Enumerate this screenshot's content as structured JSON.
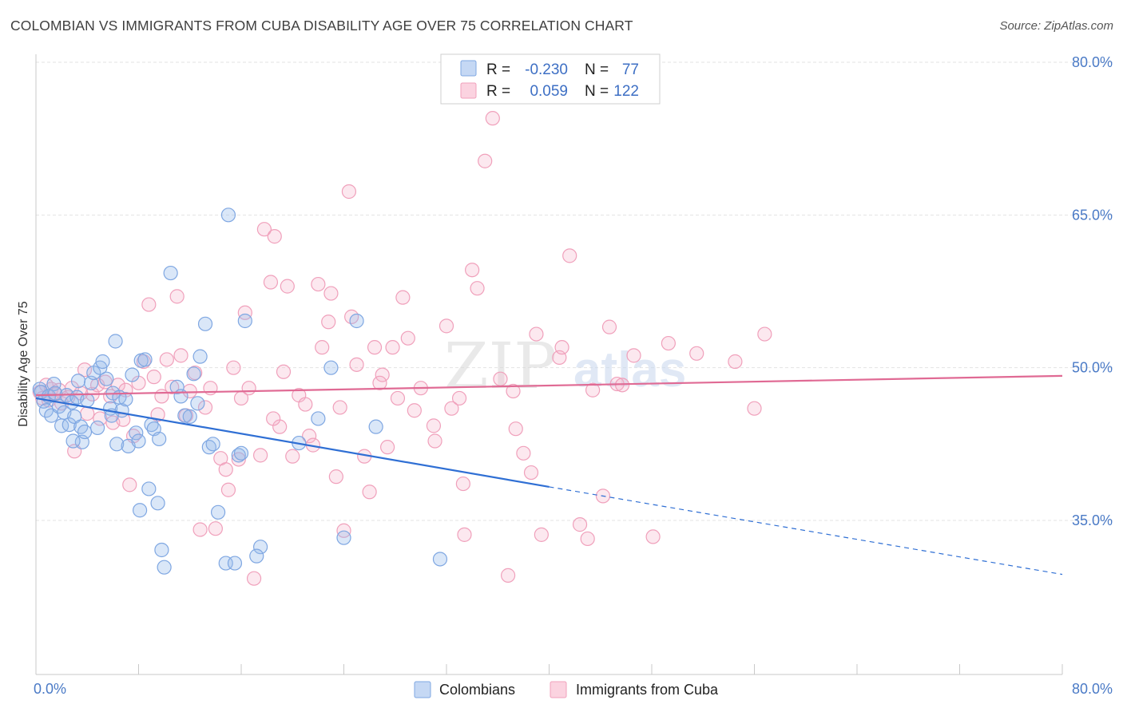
{
  "header": {
    "title": "COLOMBIAN VS IMMIGRANTS FROM CUBA DISABILITY AGE OVER 75 CORRELATION CHART",
    "source": "Source: ZipAtlas.com"
  },
  "watermark": {
    "part1": "ZIP",
    "part2": "atlas"
  },
  "legend_top": {
    "rows": [
      {
        "r_label": "R =",
        "r_value": "-0.230",
        "n_label": "N =",
        "n_value": "77",
        "color": "#7fa7e2"
      },
      {
        "r_label": "R =",
        "r_value": "0.059",
        "n_label": "N =",
        "n_value": "122",
        "color": "#f0a0bb"
      }
    ]
  },
  "legend_bottom": {
    "items": [
      {
        "label": "Colombians",
        "color": "#7fa7e2"
      },
      {
        "label": "Immigrants from Cuba",
        "color": "#f0a0bb"
      }
    ]
  },
  "chart_data": {
    "type": "scatter",
    "title": "COLOMBIAN VS IMMIGRANTS FROM CUBA DISABILITY AGE OVER 75 CORRELATION CHART",
    "xlabel": "",
    "ylabel": "Disability Age Over 75",
    "xlim": [
      0,
      80
    ],
    "ylim": [
      20,
      82
    ],
    "x_tick_labels": [
      "0.0%",
      "80.0%"
    ],
    "y_ticks": [
      35,
      50,
      65,
      80
    ],
    "y_tick_labels": [
      "35.0%",
      "50.0%",
      "65.0%",
      "80.0%"
    ],
    "grid": true,
    "series": [
      {
        "name": "Colombians",
        "color": "#7fa7e2",
        "line_color": "#2f6fd4",
        "r": -0.23,
        "n": 77,
        "trend": {
          "x0": 0,
          "y0": 47.0,
          "x1": 40,
          "y1": 38.3,
          "dashed_to_x": 80,
          "dashed_to_y": 29.7
        },
        "points": [
          [
            0.3,
            47.9
          ],
          [
            0.4,
            47.6
          ],
          [
            0.6,
            46.7
          ],
          [
            0.8,
            45.8
          ],
          [
            1,
            47.2
          ],
          [
            1.2,
            45.3
          ],
          [
            1.4,
            48.4
          ],
          [
            1.5,
            47.5
          ],
          [
            1.8,
            46.2
          ],
          [
            2,
            44.3
          ],
          [
            2.2,
            45.6
          ],
          [
            2.4,
            47.3
          ],
          [
            2.6,
            44.4
          ],
          [
            2.8,
            46.6
          ],
          [
            3,
            45.2
          ],
          [
            3.2,
            47.1
          ],
          [
            3.3,
            48.7
          ],
          [
            3.5,
            44.2
          ],
          [
            3.6,
            42.7
          ],
          [
            3.8,
            43.7
          ],
          [
            4,
            46.8
          ],
          [
            4.3,
            48.5
          ],
          [
            4.5,
            49.5
          ],
          [
            4.8,
            44.1
          ],
          [
            5,
            50.0
          ],
          [
            5.2,
            50.6
          ],
          [
            5.5,
            48.9
          ],
          [
            5.8,
            46.0
          ],
          [
            6,
            47.5
          ],
          [
            6.2,
            52.6
          ],
          [
            6.3,
            42.5
          ],
          [
            6.5,
            47.1
          ],
          [
            6.7,
            45.8
          ],
          [
            7,
            46.9
          ],
          [
            7.2,
            42.3
          ],
          [
            7.5,
            49.3
          ],
          [
            7.8,
            43.6
          ],
          [
            8,
            42.8
          ],
          [
            8.2,
            50.7
          ],
          [
            8.5,
            50.8
          ],
          [
            8.8,
            38.1
          ],
          [
            9,
            44.4
          ],
          [
            9.2,
            44.0
          ],
          [
            9.5,
            36.7
          ],
          [
            9.8,
            32.1
          ],
          [
            10,
            30.4
          ],
          [
            10.5,
            59.3
          ],
          [
            11,
            48.1
          ],
          [
            11.3,
            47.2
          ],
          [
            11.6,
            45.3
          ],
          [
            12,
            45.2
          ],
          [
            12.3,
            49.4
          ],
          [
            12.6,
            46.5
          ],
          [
            12.8,
            51.1
          ],
          [
            13.2,
            54.3
          ],
          [
            13.5,
            42.2
          ],
          [
            13.8,
            42.5
          ],
          [
            14.2,
            35.8
          ],
          [
            14.8,
            30.8
          ],
          [
            15,
            65.0
          ],
          [
            15.5,
            30.8
          ],
          [
            15.8,
            41.4
          ],
          [
            16,
            41.6
          ],
          [
            16.3,
            54.6
          ],
          [
            17.5,
            32.4
          ],
          [
            17.2,
            31.5
          ],
          [
            20.5,
            42.6
          ],
          [
            22,
            45.0
          ],
          [
            23,
            50.0
          ],
          [
            24,
            33.3
          ],
          [
            25,
            54.6
          ],
          [
            26.5,
            44.2
          ],
          [
            31.5,
            31.2
          ],
          [
            8.1,
            36.0
          ],
          [
            5.9,
            45.3
          ],
          [
            9.6,
            43.0
          ],
          [
            2.9,
            42.8
          ]
        ]
      },
      {
        "name": "Immigrants from Cuba",
        "color": "#f0a0bb",
        "line_color": "#e06a94",
        "r": 0.059,
        "n": 122,
        "trend": {
          "x0": 0,
          "y0": 47.3,
          "x1": 80,
          "y1": 49.2
        },
        "points": [
          [
            0.3,
            47.6
          ],
          [
            0.5,
            47.0
          ],
          [
            0.8,
            48.3
          ],
          [
            1.0,
            46.8
          ],
          [
            1.2,
            47.9
          ],
          [
            1.5,
            47.4
          ],
          [
            1.8,
            47.8
          ],
          [
            2.0,
            46.5
          ],
          [
            2.5,
            47.1
          ],
          [
            2.8,
            48.0
          ],
          [
            3,
            41.8
          ],
          [
            3.5,
            47.5
          ],
          [
            3.8,
            49.8
          ],
          [
            4,
            45.5
          ],
          [
            4.4,
            47.4
          ],
          [
            4.8,
            48.3
          ],
          [
            5,
            45.0
          ],
          [
            5.4,
            48.6
          ],
          [
            5.8,
            47.2
          ],
          [
            6,
            44.6
          ],
          [
            6.4,
            48.3
          ],
          [
            6.8,
            44.9
          ],
          [
            7,
            47.8
          ],
          [
            7.3,
            38.5
          ],
          [
            7.6,
            43.3
          ],
          [
            8,
            48.5
          ],
          [
            8.4,
            50.6
          ],
          [
            8.8,
            56.2
          ],
          [
            9.2,
            49.1
          ],
          [
            9.5,
            45.4
          ],
          [
            9.8,
            47.2
          ],
          [
            10.2,
            50.8
          ],
          [
            10.6,
            48.1
          ],
          [
            11,
            57.0
          ],
          [
            11.3,
            51.2
          ],
          [
            11.7,
            45.3
          ],
          [
            12,
            47.7
          ],
          [
            12.4,
            49.5
          ],
          [
            12.8,
            34.1
          ],
          [
            13.2,
            46.1
          ],
          [
            13.6,
            48.0
          ],
          [
            14,
            34.2
          ],
          [
            14.4,
            41.1
          ],
          [
            14.8,
            40.0
          ],
          [
            15,
            38.0
          ],
          [
            15.4,
            50.0
          ],
          [
            15.8,
            41.0
          ],
          [
            16,
            47.0
          ],
          [
            16.3,
            55.4
          ],
          [
            16.6,
            48.0
          ],
          [
            17,
            29.3
          ],
          [
            17.5,
            41.4
          ],
          [
            17.8,
            63.6
          ],
          [
            18.3,
            58.4
          ],
          [
            18.6,
            62.9
          ],
          [
            19,
            44.2
          ],
          [
            19.3,
            49.6
          ],
          [
            19.6,
            58.0
          ],
          [
            20,
            41.3
          ],
          [
            20.5,
            47.3
          ],
          [
            21,
            46.4
          ],
          [
            21.3,
            43.3
          ],
          [
            21.6,
            42.4
          ],
          [
            22,
            58.2
          ],
          [
            22.3,
            52.0
          ],
          [
            22.8,
            54.5
          ],
          [
            23,
            57.3
          ],
          [
            23.4,
            39.3
          ],
          [
            23.7,
            46.1
          ],
          [
            24,
            34.0
          ],
          [
            24.4,
            67.3
          ],
          [
            24.6,
            55.0
          ],
          [
            25,
            50.3
          ],
          [
            25.6,
            41.3
          ],
          [
            26,
            37.8
          ],
          [
            26.4,
            52.0
          ],
          [
            27,
            49.3
          ],
          [
            27.4,
            42.2
          ],
          [
            27.8,
            52.0
          ],
          [
            28.2,
            47.0
          ],
          [
            28.6,
            56.9
          ],
          [
            29,
            52.9
          ],
          [
            29.5,
            45.8
          ],
          [
            30,
            48.0
          ],
          [
            31,
            44.3
          ],
          [
            32,
            54.1
          ],
          [
            32.4,
            46.0
          ],
          [
            33,
            47.0
          ],
          [
            33.4,
            33.6
          ],
          [
            34,
            59.6
          ],
          [
            34.4,
            57.8
          ],
          [
            35,
            70.3
          ],
          [
            35.6,
            74.5
          ],
          [
            36.2,
            48.9
          ],
          [
            36.8,
            29.6
          ],
          [
            37.2,
            47.7
          ],
          [
            37.4,
            44.0
          ],
          [
            38,
            41.6
          ],
          [
            38.6,
            39.7
          ],
          [
            39,
            53.3
          ],
          [
            39.4,
            33.6
          ],
          [
            40.8,
            51.0
          ],
          [
            41,
            52.0
          ],
          [
            41.6,
            61.0
          ],
          [
            42.4,
            34.6
          ],
          [
            43,
            33.2
          ],
          [
            43.4,
            47.8
          ],
          [
            44.2,
            37.4
          ],
          [
            44.7,
            54.0
          ],
          [
            45.3,
            48.4
          ],
          [
            46.6,
            51.2
          ],
          [
            48.1,
            33.4
          ],
          [
            49.3,
            52.4
          ],
          [
            51.5,
            51.4
          ],
          [
            54.5,
            50.6
          ],
          [
            56,
            46.0
          ],
          [
            56.8,
            53.3
          ],
          [
            45.7,
            48.3
          ],
          [
            31.1,
            42.8
          ],
          [
            26.8,
            48.5
          ],
          [
            18.5,
            45.0
          ],
          [
            33.3,
            38.6
          ]
        ]
      }
    ]
  }
}
